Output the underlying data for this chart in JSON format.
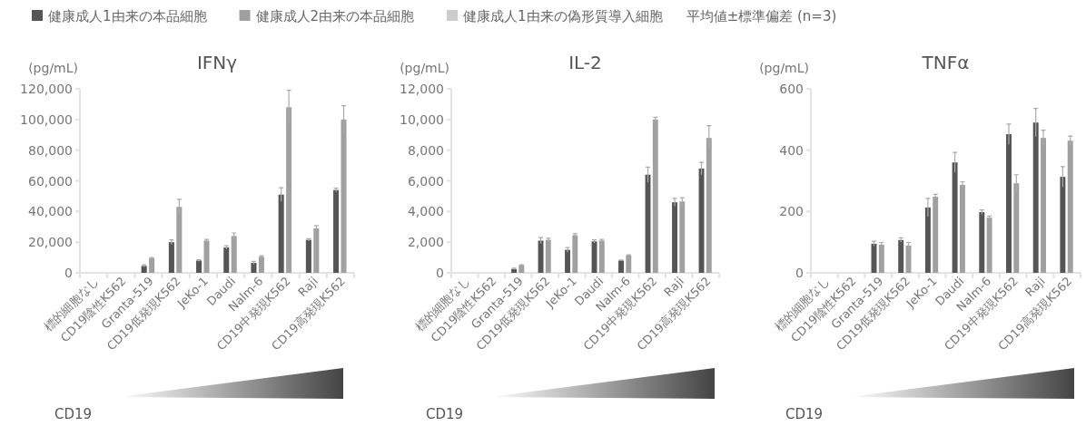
{
  "chart_data": [
    {
      "type": "bar",
      "title": "IFNγ",
      "ylabel": "(pg/mL)",
      "legend": "top",
      "categories": [
        "標的細胞なし",
        "CD19陰性K562",
        "Granta-519",
        "CD19低発現K562",
        "JeKo-1",
        "Daudi",
        "Nalm-6",
        "CD19中発現K562",
        "Raji",
        "CD19高発現K562"
      ],
      "series": [
        {
          "name": "健康成人1由来の本品細胞",
          "color": "#555555",
          "values": [
            0,
            0,
            4500,
            20000,
            8000,
            16500,
            6500,
            51000,
            21500,
            54000
          ],
          "errors": [
            null,
            null,
            800,
            1500,
            500,
            1200,
            1000,
            4500,
            800,
            1200
          ]
        },
        {
          "name": "健康成人2由来の本品細胞",
          "color": "#a0a0a0",
          "values": [
            0,
            0,
            9500,
            43000,
            21000,
            24000,
            10500,
            108000,
            29000,
            100000
          ],
          "errors": [
            null,
            null,
            500,
            5000,
            800,
            2000,
            700,
            11000,
            1800,
            9000
          ]
        },
        {
          "name": "健康成人1由来の偽形質導入細胞",
          "color": "#cccccc",
          "values": [
            0,
            0,
            0,
            0,
            0,
            0,
            0,
            0,
            0,
            0
          ]
        }
      ],
      "ylim": [
        0,
        120000
      ],
      "yticks": [
        0,
        {
          "value": 20000,
          "label": "20,000"
        },
        {
          "value": 40000,
          "label": "40,000"
        },
        {
          "value": 60000,
          "label": "60,000"
        },
        {
          "value": 80000,
          "label": "80,000"
        },
        {
          "value": 100000,
          "label": "100,000"
        },
        {
          "value": 120000,
          "label": "120,000"
        }
      ],
      "grid": false,
      "annotations": [
        "CD19",
        "平均値±標準偏差 (n=3)"
      ]
    },
    {
      "type": "bar",
      "title": "IL-2",
      "ylabel": "(pg/mL)",
      "categories": [
        "標的細胞なし",
        "CD19陰性K562",
        "Granta-519",
        "CD19低発現K562",
        "JeKo-1",
        "Daudi",
        "Nalm-6",
        "CD19中発現K562",
        "Raji",
        "CD19高発現K562"
      ],
      "series": [
        {
          "color": "#555555",
          "values": [
            0,
            0,
            250,
            2100,
            1500,
            2050,
            800,
            6400,
            4600,
            6800
          ],
          "errors": [
            null,
            null,
            50,
            200,
            150,
            100,
            30,
            500,
            250,
            400
          ]
        },
        {
          "color": "#a0a0a0",
          "values": [
            0,
            0,
            500,
            2150,
            2450,
            2100,
            1150,
            10000,
            4650,
            8800
          ],
          "errors": [
            null,
            null,
            30,
            100,
            100,
            80,
            30,
            150,
            250,
            800
          ]
        },
        {
          "color": "#cccccc",
          "values": [
            0,
            0,
            0,
            0,
            0,
            0,
            0,
            0,
            0,
            0
          ]
        }
      ],
      "ylim": [
        0,
        12000
      ],
      "yticks": [
        0,
        {
          "value": 2000,
          "label": "2,000"
        },
        {
          "value": 4000,
          "label": "4,000"
        },
        {
          "value": 6000,
          "label": "6,000"
        },
        {
          "value": 8000,
          "label": "8,000"
        },
        {
          "value": 10000,
          "label": "10,000"
        },
        {
          "value": 12000,
          "label": "12,000"
        }
      ],
      "grid": false,
      "annotations": [
        "CD19"
      ]
    },
    {
      "type": "bar",
      "title": "TNFα",
      "ylabel": "(pg/mL)",
      "categories": [
        "標的細胞なし",
        "CD19陰性K562",
        "Granta-519",
        "CD19低発現K562",
        "JeKo-1",
        "Daudi",
        "Nalm-6",
        "CD19中発現K562",
        "Raji",
        "CD19高発現K562"
      ],
      "series": [
        {
          "color": "#555555",
          "values": [
            0,
            0,
            95,
            107,
            213,
            360,
            198,
            452,
            490,
            313
          ],
          "errors": [
            null,
            null,
            8,
            7,
            30,
            33,
            7,
            33,
            46,
            33
          ]
        },
        {
          "color": "#a0a0a0",
          "values": [
            0,
            0,
            92,
            89,
            248,
            287,
            180,
            292,
            440,
            431
          ],
          "errors": [
            null,
            null,
            7,
            10,
            8,
            10,
            5,
            28,
            25,
            15
          ]
        },
        {
          "color": "#cccccc",
          "values": [
            0,
            0,
            0,
            0,
            0,
            0,
            0,
            0,
            0,
            0
          ]
        }
      ],
      "ylim": [
        0,
        600
      ],
      "yticks": [
        0,
        200,
        400,
        600
      ],
      "grid": false,
      "annotations": [
        "CD19"
      ]
    }
  ]
}
